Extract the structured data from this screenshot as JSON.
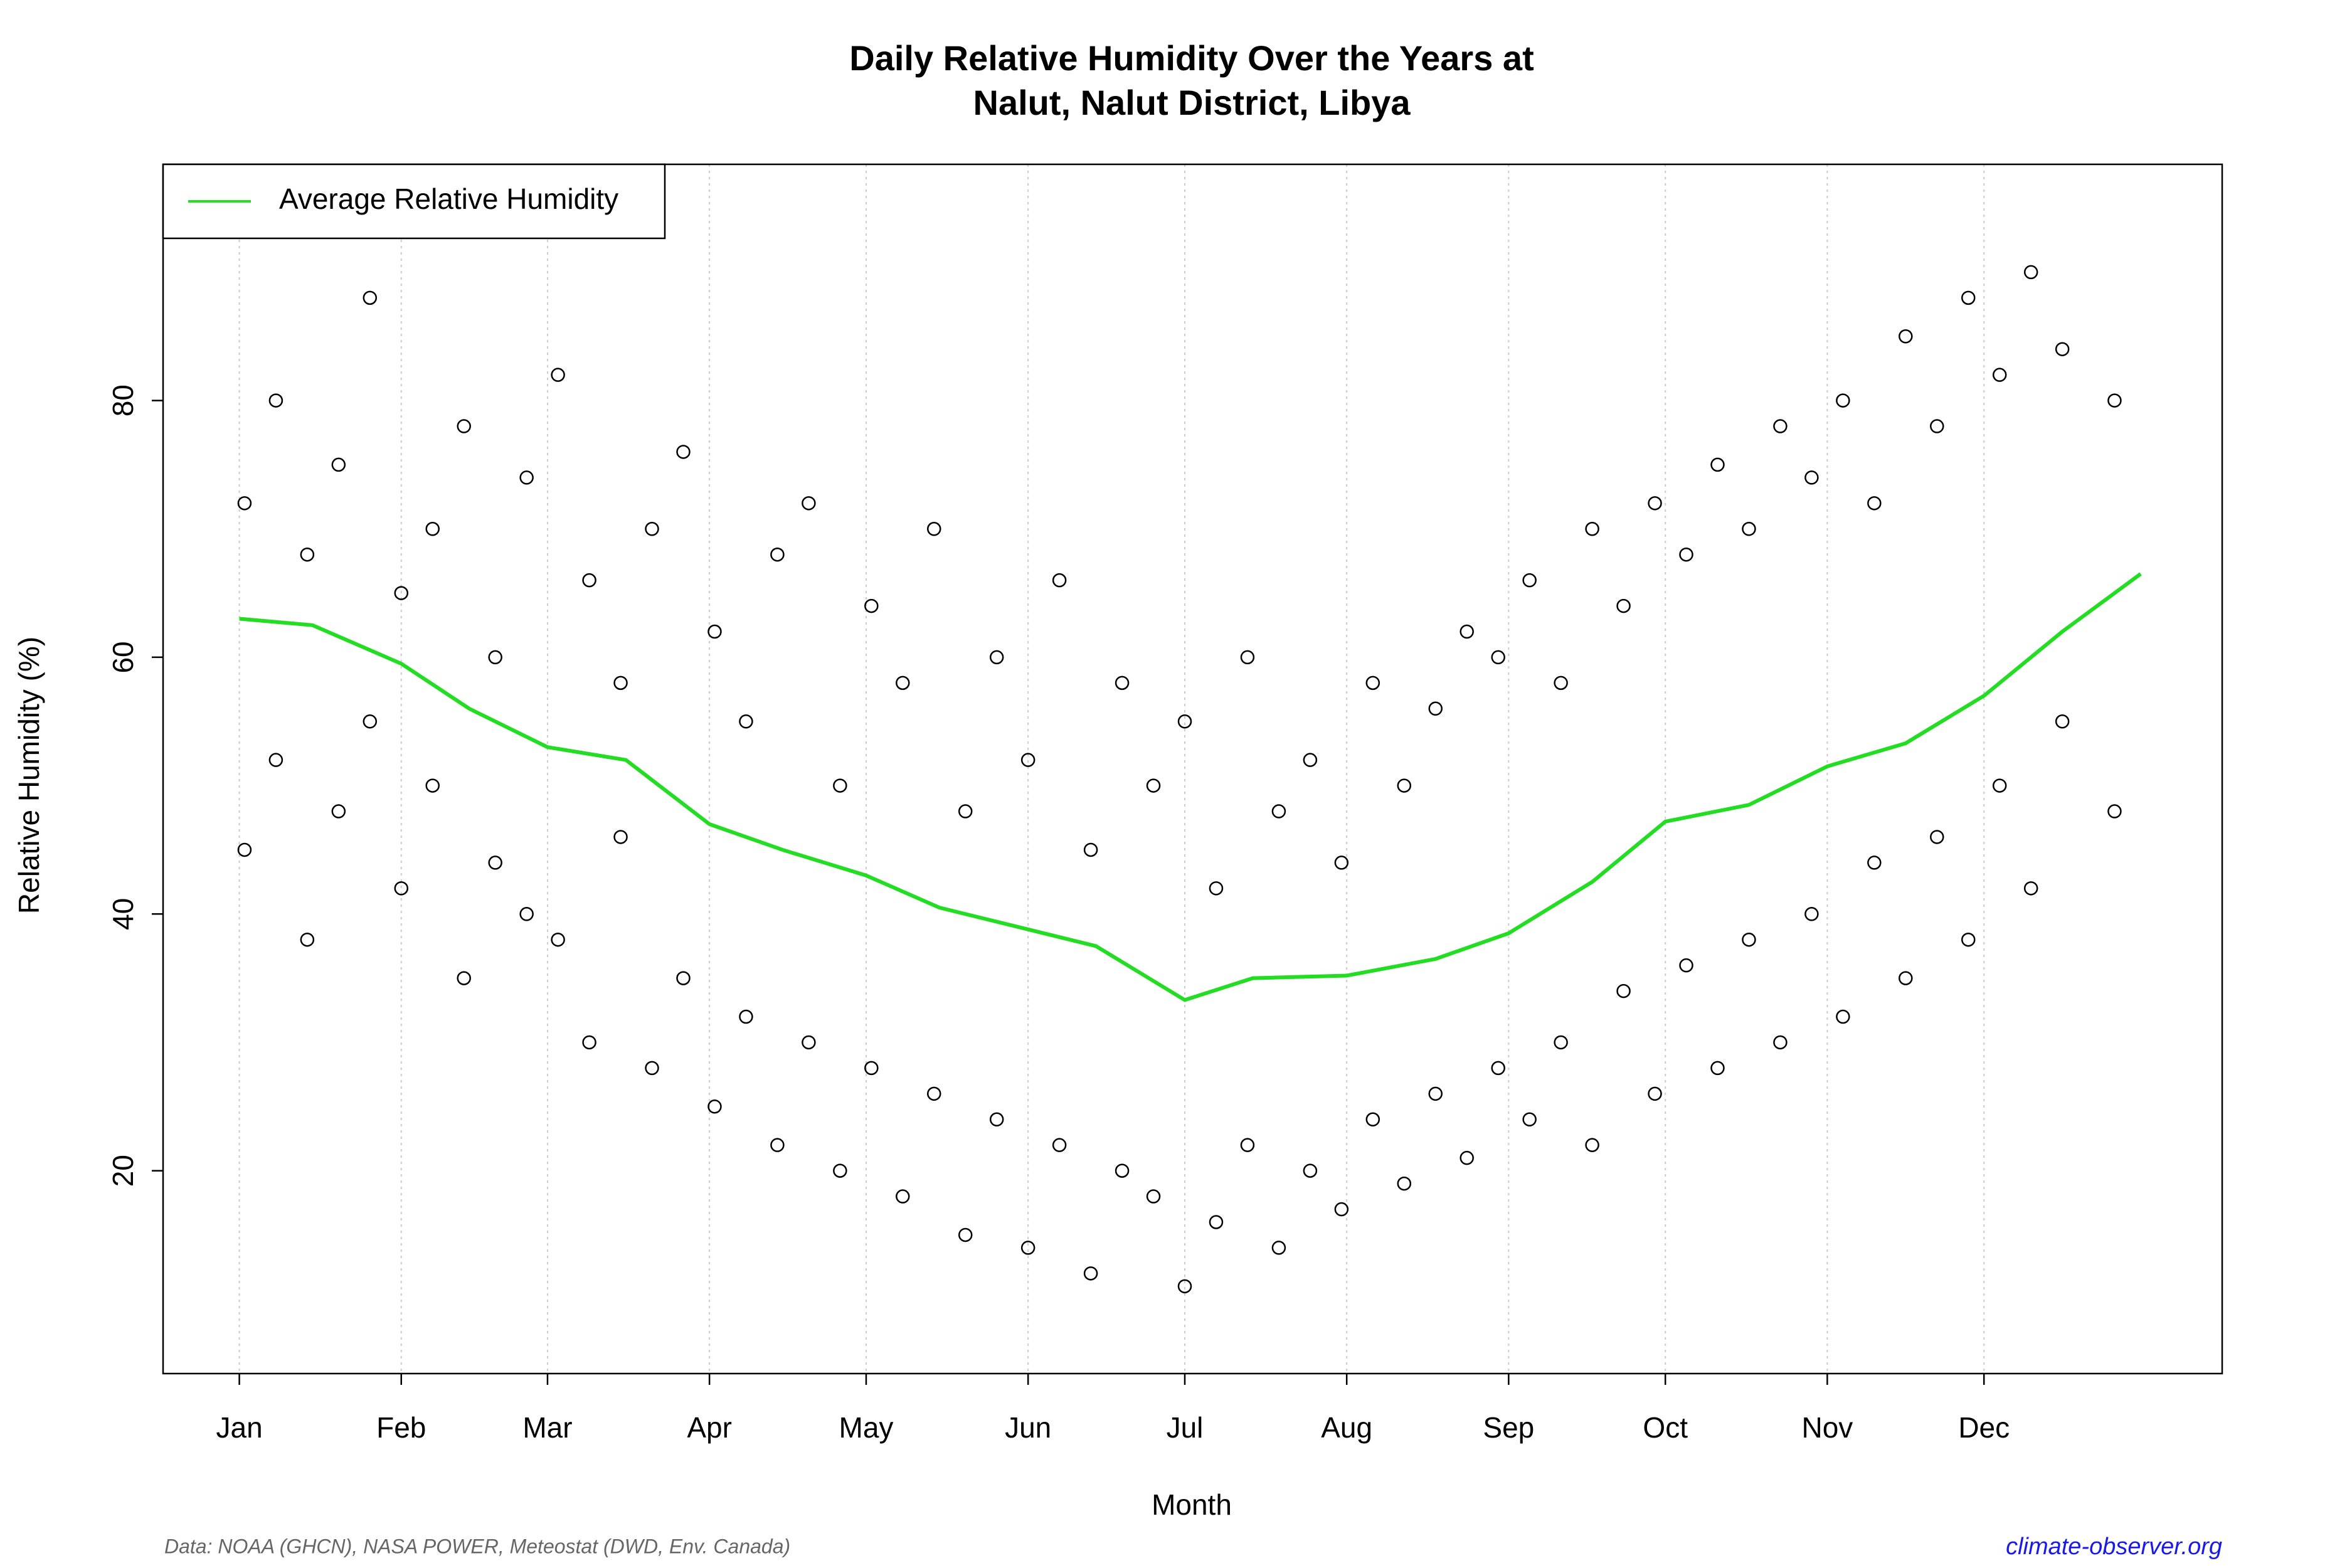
{
  "chart_data": {
    "type": "scatter",
    "title": "Daily Relative Humidity Over the Years at",
    "subtitle": "Nalut, Nalut District, Libya",
    "x_label": "Month",
    "y_label": "Relative Humidity  (%)",
    "source": "Data: NOAA (GHCN), NASA POWER, Meteostat (DWD, Env. Canada)",
    "website": "climate-observer.org",
    "xlim": [
      -13.6,
      380.6
    ],
    "ylim": [
      4.2,
      98.4
    ],
    "xticks": [
      {
        "value": 1,
        "label": "Jan"
      },
      {
        "value": 32,
        "label": "Feb"
      },
      {
        "value": 60,
        "label": "Mar"
      },
      {
        "value": 91,
        "label": "Apr"
      },
      {
        "value": 121,
        "label": "May"
      },
      {
        "value": 152,
        "label": "Jun"
      },
      {
        "value": 182,
        "label": "Jul"
      },
      {
        "value": 213,
        "label": "Aug"
      },
      {
        "value": 244,
        "label": "Sep"
      },
      {
        "value": 274,
        "label": "Oct"
      },
      {
        "value": 305,
        "label": "Nov"
      },
      {
        "value": 335,
        "label": "Dec"
      }
    ],
    "yticks": [
      20,
      40,
      60,
      80
    ],
    "grid": true,
    "legend": "top-left",
    "points": {
      "color": "#000000",
      "x": [
        2,
        8,
        14,
        20,
        26,
        32,
        38,
        44,
        50,
        56,
        62,
        68,
        74,
        80,
        86,
        92,
        98,
        104,
        110,
        116,
        122,
        128,
        134,
        140,
        146,
        152,
        158,
        164,
        170,
        176,
        182,
        188,
        194,
        200,
        206,
        212,
        218,
        224,
        230,
        236,
        242,
        248,
        254,
        260,
        266,
        272,
        278,
        284,
        290,
        296,
        302,
        308,
        314,
        320,
        326,
        332,
        338,
        344,
        350,
        360,
        2,
        8,
        14,
        20,
        26,
        32,
        38,
        44,
        50,
        56,
        62,
        68,
        74,
        80,
        86,
        92,
        98,
        104,
        110,
        116,
        122,
        128,
        134,
        140,
        146,
        152,
        158,
        164,
        170,
        176,
        182,
        188,
        194,
        200,
        206,
        212,
        218,
        224,
        230,
        236,
        242,
        248,
        254,
        260,
        266,
        272,
        278,
        284,
        290,
        296,
        302,
        308,
        314,
        320,
        326,
        332,
        338,
        344,
        350,
        360
      ],
      "y": [
        72,
        80,
        68,
        75,
        88,
        65,
        70,
        78,
        60,
        74,
        82,
        66,
        58,
        70,
        76,
        62,
        55,
        68,
        72,
        50,
        64,
        58,
        70,
        48,
        60,
        52,
        66,
        45,
        58,
        50,
        55,
        42,
        60,
        48,
        52,
        44,
        58,
        50,
        56,
        62,
        60,
        66,
        58,
        70,
        64,
        72,
        68,
        75,
        70,
        78,
        74,
        80,
        72,
        85,
        78,
        88,
        82,
        90,
        84,
        80,
        45,
        52,
        38,
        48,
        55,
        42,
        50,
        35,
        44,
        40,
        38,
        30,
        46,
        28,
        35,
        25,
        32,
        22,
        30,
        20,
        28,
        18,
        26,
        15,
        24,
        14,
        22,
        12,
        20,
        18,
        11,
        16,
        22,
        14,
        20,
        17,
        24,
        19,
        26,
        21,
        28,
        24,
        30,
        22,
        34,
        26,
        36,
        28,
        38,
        30,
        40,
        32,
        44,
        35,
        46,
        38,
        50,
        42,
        55,
        48
      ]
    },
    "series": [
      {
        "name": "Average Relative Humidity",
        "color": "#22dd22",
        "x": [
          1,
          15,
          32,
          45,
          60,
          75,
          91,
          105,
          121,
          135,
          152,
          165,
          182,
          195,
          213,
          230,
          244,
          260,
          274,
          290,
          305,
          320,
          335,
          350,
          365
        ],
        "values": [
          63,
          62.5,
          59.5,
          56,
          53,
          52,
          47,
          45,
          43,
          40.5,
          38.8,
          37.5,
          33.3,
          35,
          35.2,
          36.5,
          38.5,
          42.5,
          47.2,
          48.5,
          51.5,
          53.3,
          57,
          62,
          66.5
        ]
      }
    ]
  }
}
